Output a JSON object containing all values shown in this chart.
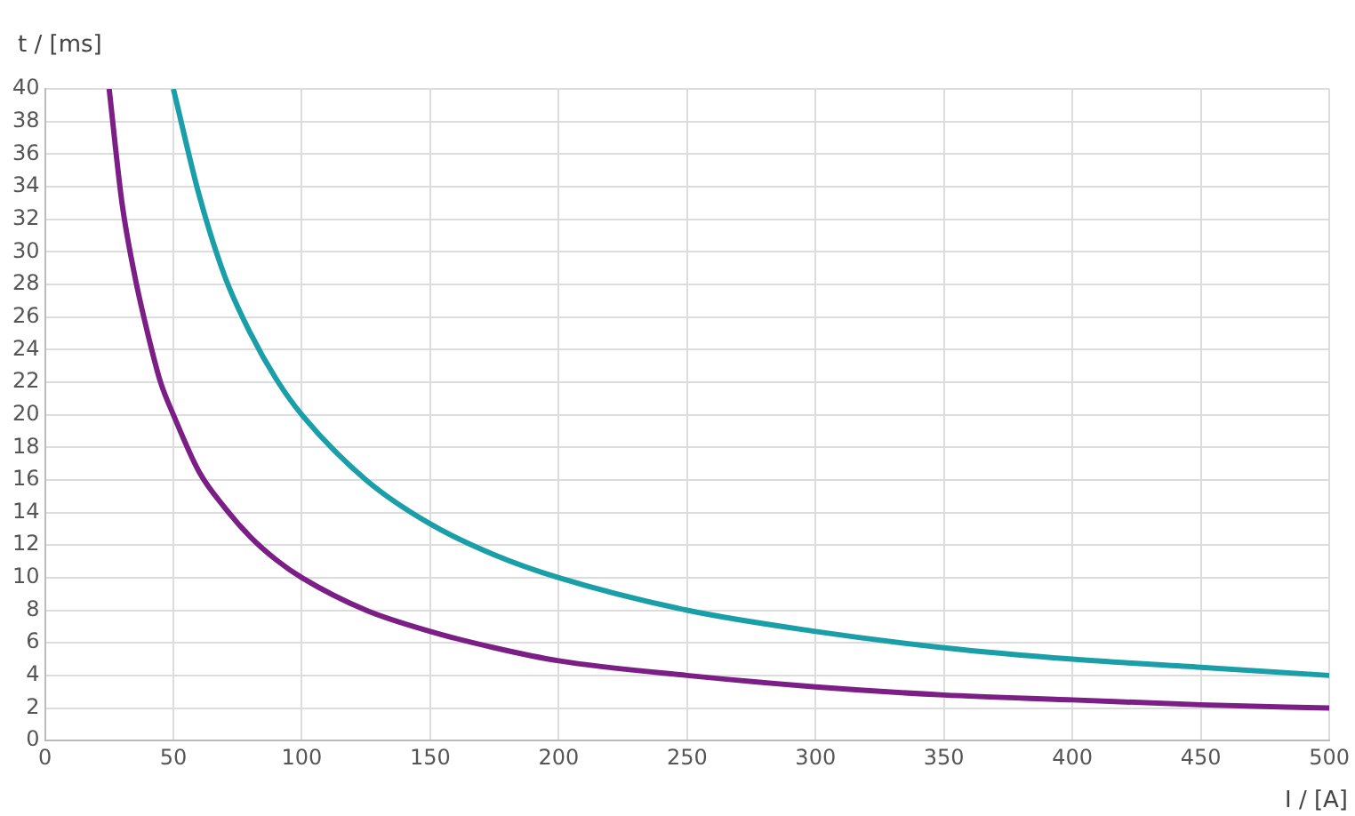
{
  "chart_data": {
    "type": "line",
    "xlabel": "I / [A]",
    "ylabel": "t / [ms]",
    "x": [
      25,
      30,
      35,
      40,
      45,
      50,
      60,
      70,
      80,
      90,
      100,
      125,
      150,
      175,
      200,
      250,
      300,
      350,
      400,
      450,
      500
    ],
    "series": [
      {
        "color": "#7b1f86",
        "values": [
          40,
          33,
          28.5,
          25,
          22,
          20,
          16.5,
          14.3,
          12.5,
          11.1,
          10,
          8,
          6.7,
          5.7,
          4.9,
          4,
          3.3,
          2.8,
          2.5,
          2.2,
          2
        ]
      },
      {
        "color": "#1a9fa8",
        "values": [
          null,
          null,
          null,
          null,
          null,
          40,
          33.5,
          28.5,
          25,
          22.2,
          20,
          16,
          13.3,
          11.4,
          10,
          8,
          6.7,
          5.7,
          5,
          4.5,
          4
        ]
      }
    ],
    "xlim": [
      0,
      500
    ],
    "xticks": [
      0,
      50,
      100,
      150,
      200,
      250,
      300,
      350,
      400,
      450,
      500
    ],
    "ylim": [
      0,
      40
    ],
    "yticks": [
      0,
      2,
      4,
      6,
      8,
      10,
      12,
      14,
      16,
      18,
      20,
      22,
      24,
      26,
      28,
      30,
      32,
      34,
      36,
      38,
      40
    ],
    "grid": true,
    "marker": "none",
    "line_style": "solid"
  }
}
